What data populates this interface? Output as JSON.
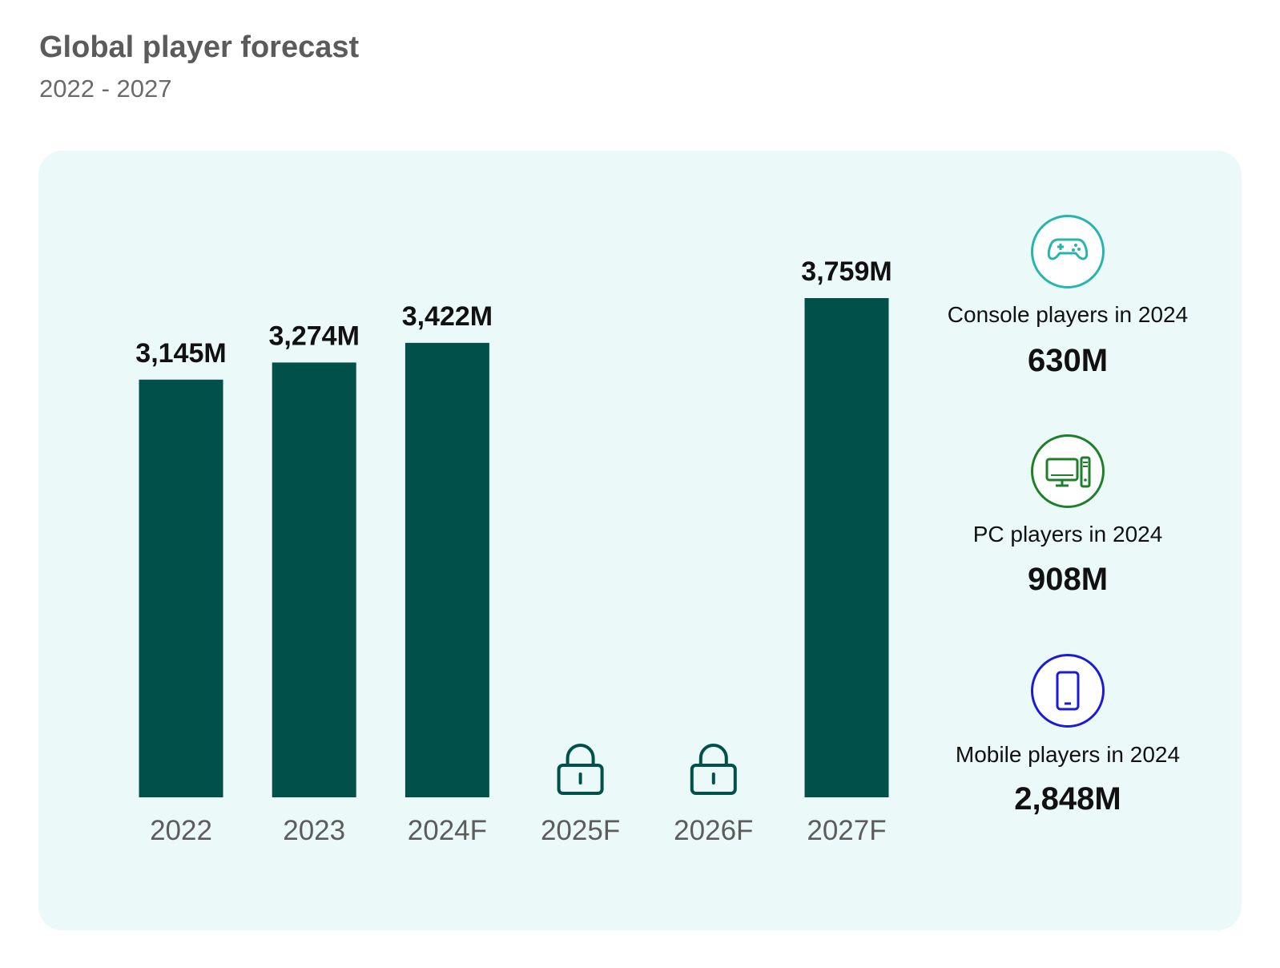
{
  "header": {
    "title": "Global player forecast",
    "subtitle": "2022 - 2027"
  },
  "chart_data": {
    "type": "bar",
    "title": "Global player forecast",
    "subtitle": "2022 - 2027",
    "categories": [
      "2022",
      "2023",
      "2024F",
      "2025F",
      "2026F",
      "2027F"
    ],
    "values": [
      3145,
      3274,
      3422,
      null,
      null,
      3759
    ],
    "value_labels": [
      "3,145M",
      "3,274M",
      "3,422M",
      "",
      "",
      "3,759M"
    ],
    "locked": [
      false,
      false,
      false,
      true,
      true,
      false
    ],
    "unit": "M",
    "ylim": [
      0,
      3759
    ],
    "grid": false,
    "bar_color": "#01514a",
    "lock_color": "#01514a"
  },
  "stats": [
    {
      "label": "Console players in 2024",
      "value": "630M",
      "icon": "gamepad-icon",
      "color": "#25b5ac"
    },
    {
      "label": "PC players in 2024",
      "value": "908M",
      "icon": "desktop-computer-icon",
      "color": "#1d7f2a"
    },
    {
      "label": "Mobile players in 2024",
      "value": "2,848M",
      "icon": "smartphone-icon",
      "color": "#1a1adb"
    }
  ],
  "colors": {
    "panel_background": "#ebfaf8",
    "title_text": "#5b5b5b"
  }
}
